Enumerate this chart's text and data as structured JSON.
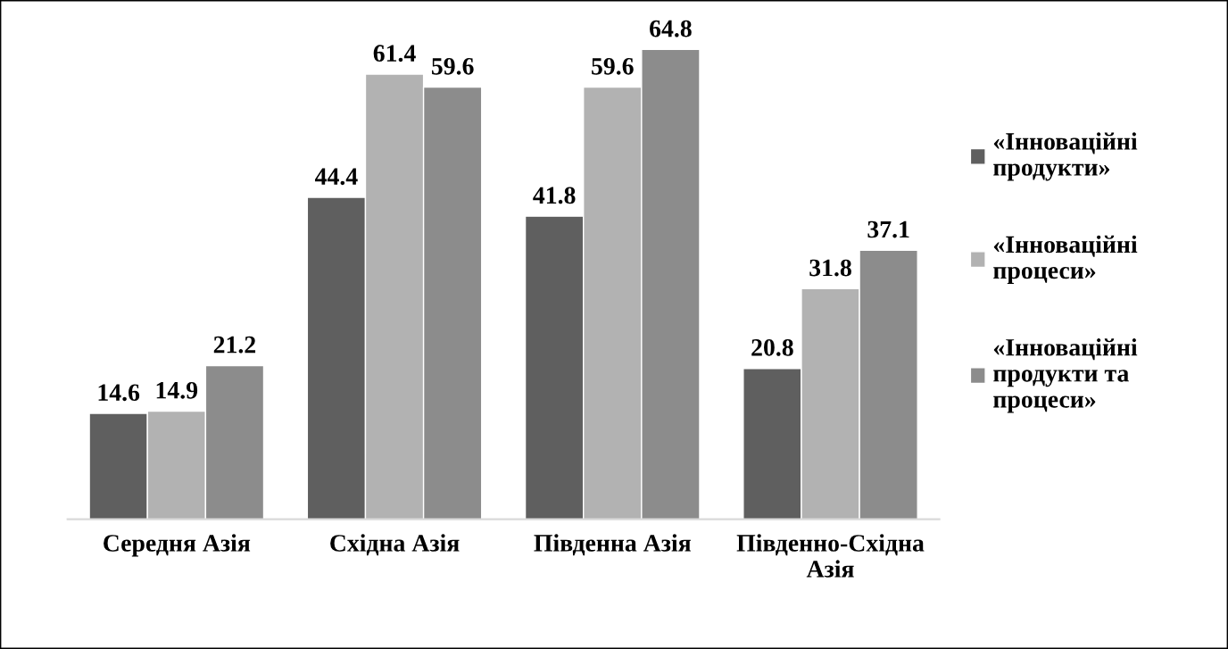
{
  "chart_data": {
    "type": "bar",
    "categories": [
      "Середня Азія",
      "Східна Азія",
      "Південна Азія",
      "Південно-Східна\nАзія"
    ],
    "series": [
      {
        "name": "«Інноваційні\nпродукти»",
        "color": "#5f5f5f",
        "values": [
          14.6,
          44.4,
          41.8,
          20.8
        ]
      },
      {
        "name": "«Інноваційні\nпроцеси»",
        "color": "#b2b2b2",
        "values": [
          14.9,
          61.4,
          59.6,
          31.8
        ]
      },
      {
        "name": "«Інноваційні\nпродукти та\nпроцеси»",
        "color": "#8c8c8c",
        "values": [
          21.2,
          59.6,
          64.8,
          37.1
        ]
      }
    ],
    "tick_labels": "x",
    "data_labels": true,
    "legend": "right",
    "grid": false
  }
}
